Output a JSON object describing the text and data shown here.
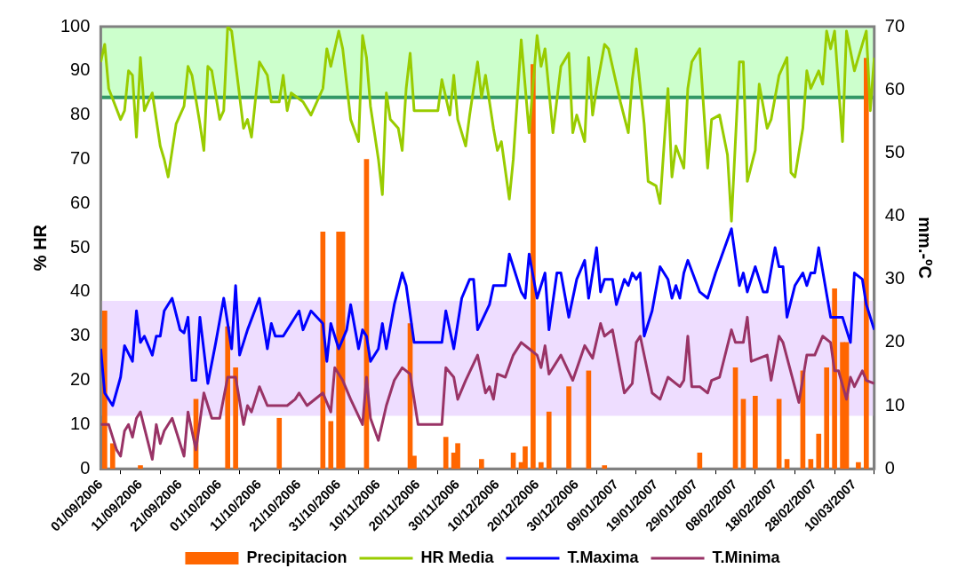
{
  "chart_data": {
    "type": "line",
    "ylabel": "% HR",
    "y2label": "mm.-ºC",
    "xlim": [
      "2006-09-01",
      "2007-03-15"
    ],
    "xticks": [
      {
        "value": "2006-09-01",
        "label": "01/09/2006"
      },
      {
        "value": "2006-09-11",
        "label": "11/09/2006"
      },
      {
        "value": "2006-09-21",
        "label": "21/09/2006"
      },
      {
        "value": "2006-10-01",
        "label": "01/10/2006"
      },
      {
        "value": "2006-10-11",
        "label": "11/10/2006"
      },
      {
        "value": "2006-10-21",
        "label": "21/10/2006"
      },
      {
        "value": "2006-10-31",
        "label": "31/10/2006"
      },
      {
        "value": "2006-11-10",
        "label": "10/11/2006"
      },
      {
        "value": "2006-11-20",
        "label": "20/11/2006"
      },
      {
        "value": "2006-11-30",
        "label": "30/11/2006"
      },
      {
        "value": "2006-12-10",
        "label": "10/12/2006"
      },
      {
        "value": "2006-12-20",
        "label": "20/12/2006"
      },
      {
        "value": "2006-12-30",
        "label": "30/12/2006"
      },
      {
        "value": "2007-01-09",
        "label": "09/01/2007"
      },
      {
        "value": "2007-01-19",
        "label": "19/01/2007"
      },
      {
        "value": "2007-01-29",
        "label": "29/01/2007"
      },
      {
        "value": "2007-02-08",
        "label": "08/02/2007"
      },
      {
        "value": "2007-02-18",
        "label": "18/02/2007"
      },
      {
        "value": "2007-02-28",
        "label": "28/02/2007"
      },
      {
        "value": "2007-03-10",
        "label": "10/03/2007"
      }
    ],
    "ylim": [
      0,
      100
    ],
    "yticks": [
      0,
      10,
      20,
      30,
      40,
      50,
      60,
      70,
      80,
      90,
      100
    ],
    "y2lim": [
      0,
      70
    ],
    "y2ticks": [
      0,
      10,
      20,
      30,
      40,
      50,
      60,
      70
    ],
    "legend": "bottom",
    "bands": [
      {
        "axis": "y",
        "from": 84,
        "to": 100,
        "color": "#ccffcc"
      },
      {
        "axis": "y",
        "from": 12,
        "to": 38,
        "color": "#eeddff"
      }
    ],
    "ref_lines": [
      {
        "axis": "y",
        "value": 84,
        "color": "#339966"
      }
    ],
    "series": [
      {
        "name": "Precipitacion",
        "type": "bar",
        "axis": "y2",
        "color": "#ff6600",
        "x": [
          "2006-09-02",
          "2006-09-04",
          "2006-09-11",
          "2006-09-25",
          "2006-10-03",
          "2006-10-05",
          "2006-10-16",
          "2006-10-27",
          "2006-10-29",
          "2006-10-31",
          "2006-11-01",
          "2006-11-07",
          "2006-11-18",
          "2006-11-19",
          "2006-11-27",
          "2006-11-29",
          "2006-11-30",
          "2006-12-06",
          "2006-12-14",
          "2006-12-16",
          "2006-12-17",
          "2006-12-19",
          "2006-12-21",
          "2006-12-23",
          "2006-12-28",
          "2007-01-02",
          "2007-01-06",
          "2007-01-30",
          "2007-02-08",
          "2007-02-10",
          "2007-02-13",
          "2007-02-19",
          "2007-02-21",
          "2007-02-25",
          "2007-02-27",
          "2007-03-01",
          "2007-03-03",
          "2007-03-05",
          "2007-03-07",
          "2007-03-08",
          "2007-03-11",
          "2007-03-13"
        ],
        "values": [
          25,
          4,
          0.5,
          11,
          22.5,
          16,
          8,
          37.5,
          7.5,
          37.5,
          37.5,
          49,
          23,
          2,
          5,
          2.5,
          4,
          1.5,
          2.5,
          1,
          3.5,
          64,
          1,
          9,
          13,
          15.5,
          0.5,
          2.5,
          16,
          11,
          11.5,
          11,
          1.5,
          15.5,
          1.5,
          5.5,
          16,
          28.5,
          20,
          20,
          1,
          65
        ]
      },
      {
        "name": "HR Media",
        "color": "#99cc00",
        "x": [
          "2006-09-01",
          "2006-09-02",
          "2006-09-03",
          "2006-09-06",
          "2006-09-07",
          "2006-09-08",
          "2006-09-09",
          "2006-09-10",
          "2006-09-11",
          "2006-09-12",
          "2006-09-14",
          "2006-09-16",
          "2006-09-17",
          "2006-09-18",
          "2006-09-20",
          "2006-09-22",
          "2006-09-23",
          "2006-09-24",
          "2006-09-26",
          "2006-09-27",
          "2006-09-28",
          "2006-09-29",
          "2006-10-01",
          "2006-10-02",
          "2006-10-03",
          "2006-10-04",
          "2006-10-07",
          "2006-10-08",
          "2006-10-09",
          "2006-10-11",
          "2006-10-13",
          "2006-10-14",
          "2006-10-16",
          "2006-10-17",
          "2006-10-18",
          "2006-10-19",
          "2006-10-22",
          "2006-10-24",
          "2006-10-27",
          "2006-10-28",
          "2006-10-29",
          "2006-10-31",
          "2006-11-01",
          "2006-11-03",
          "2006-11-05",
          "2006-11-06",
          "2006-11-07",
          "2006-11-08",
          "2006-11-09",
          "2006-11-10",
          "2006-11-11",
          "2006-11-12",
          "2006-11-13",
          "2006-11-15",
          "2006-11-16",
          "2006-11-17",
          "2006-11-18",
          "2006-11-19",
          "2006-11-20",
          "2006-11-25",
          "2006-11-26",
          "2006-11-28",
          "2006-11-29",
          "2006-11-30",
          "2006-12-02",
          "2006-12-03",
          "2006-12-05",
          "2006-12-06",
          "2006-12-07",
          "2006-12-09",
          "2006-12-10",
          "2006-12-11",
          "2006-12-13",
          "2006-12-14",
          "2006-12-16",
          "2006-12-18",
          "2006-12-20",
          "2006-12-21",
          "2006-12-22",
          "2006-12-24",
          "2006-12-26",
          "2006-12-28",
          "2006-12-29",
          "2006-12-30",
          "2007-01-01",
          "2007-01-02",
          "2007-01-03",
          "2007-01-04",
          "2007-01-06",
          "2007-01-07",
          "2007-01-10",
          "2007-01-12",
          "2007-01-13",
          "2007-01-14",
          "2007-01-16",
          "2007-01-17",
          "2007-01-19",
          "2007-01-20",
          "2007-01-22",
          "2007-01-23",
          "2007-01-24",
          "2007-01-26",
          "2007-01-27",
          "2007-01-28",
          "2007-01-30",
          "2007-02-01",
          "2007-02-02",
          "2007-02-04",
          "2007-02-06",
          "2007-02-07",
          "2007-02-09",
          "2007-02-10",
          "2007-02-11",
          "2007-02-13",
          "2007-02-14",
          "2007-02-16",
          "2007-02-17",
          "2007-02-19",
          "2007-02-21",
          "2007-02-22",
          "2007-02-23",
          "2007-02-25",
          "2007-02-26",
          "2007-02-27",
          "2007-03-01",
          "2007-03-02",
          "2007-03-03",
          "2007-03-04",
          "2007-03-05",
          "2007-03-07",
          "2007-03-08",
          "2007-03-10",
          "2007-03-12",
          "2007-03-13",
          "2007-03-14",
          "2007-03-15"
        ],
        "values": [
          92,
          96,
          86,
          79,
          81,
          90,
          89,
          75,
          93,
          81,
          85,
          73,
          70,
          66,
          78,
          82,
          91,
          89,
          78,
          72,
          91,
          90,
          79,
          81,
          100,
          99,
          77,
          79,
          75,
          92,
          89,
          83,
          83,
          89,
          81,
          85,
          83,
          80,
          86,
          95,
          91,
          99,
          95,
          79,
          74,
          98,
          93,
          82,
          76,
          70,
          62,
          85,
          79,
          77,
          72,
          86,
          94,
          81,
          81,
          81,
          88,
          80,
          89,
          79,
          73,
          80,
          92,
          84,
          89,
          77,
          72,
          74,
          61,
          70,
          97,
          76,
          98,
          91,
          95,
          76,
          91,
          94,
          76,
          80,
          74,
          93,
          80,
          86,
          96,
          95,
          83,
          76,
          88,
          95,
          78,
          65,
          64,
          60,
          86,
          66,
          73,
          68,
          86,
          92,
          95,
          68,
          79,
          80,
          71,
          56,
          92,
          92,
          65,
          72,
          87,
          77,
          79,
          89,
          93,
          67,
          66,
          77,
          90,
          86,
          90,
          87,
          99,
          95,
          99,
          74,
          99,
          90,
          96,
          99,
          81,
          93
        ]
      },
      {
        "name": "T.Maxima",
        "axis": "y2",
        "color": "#0000ff",
        "x": [
          "2006-09-01",
          "2006-09-02",
          "2006-09-04",
          "2006-09-06",
          "2006-09-07",
          "2006-09-09",
          "2006-09-10",
          "2006-09-11",
          "2006-09-12",
          "2006-09-14",
          "2006-09-15",
          "2006-09-16",
          "2006-09-17",
          "2006-09-19",
          "2006-09-21",
          "2006-09-22",
          "2006-09-23",
          "2006-09-24",
          "2006-09-25",
          "2006-09-26",
          "2006-09-28",
          "2006-09-30",
          "2006-10-02",
          "2006-10-04",
          "2006-10-05",
          "2006-10-06",
          "2006-10-08",
          "2006-10-11",
          "2006-10-13",
          "2006-10-14",
          "2006-10-15",
          "2006-10-17",
          "2006-10-19",
          "2006-10-21",
          "2006-10-22",
          "2006-10-24",
          "2006-10-27",
          "2006-10-28",
          "2006-10-29",
          "2006-10-31",
          "2006-11-02",
          "2006-11-03",
          "2006-11-05",
          "2006-11-06",
          "2006-11-07",
          "2006-11-08",
          "2006-11-10",
          "2006-11-11",
          "2006-11-12",
          "2006-11-14",
          "2006-11-16",
          "2006-11-17",
          "2006-11-19",
          "2006-11-20",
          "2006-11-26",
          "2006-11-27",
          "2006-11-29",
          "2006-12-01",
          "2006-12-03",
          "2006-12-04",
          "2006-12-05",
          "2006-12-08",
          "2006-12-09",
          "2006-12-12",
          "2006-12-13",
          "2006-12-16",
          "2006-12-17",
          "2006-12-18",
          "2006-12-20",
          "2006-12-22",
          "2006-12-23",
          "2006-12-25",
          "2006-12-26",
          "2006-12-28",
          "2006-12-30",
          "2007-01-01",
          "2007-01-02",
          "2007-01-04",
          "2007-01-05",
          "2007-01-06",
          "2007-01-08",
          "2007-01-09",
          "2007-01-11",
          "2007-01-12",
          "2007-01-13",
          "2007-01-14",
          "2007-01-15",
          "2007-01-16",
          "2007-01-18",
          "2007-01-20",
          "2007-01-22",
          "2007-01-23",
          "2007-01-24",
          "2007-01-25",
          "2007-01-26",
          "2007-01-27",
          "2007-01-30",
          "2007-02-01",
          "2007-02-03",
          "2007-02-07",
          "2007-02-09",
          "2007-02-10",
          "2007-02-11",
          "2007-02-13",
          "2007-02-15",
          "2007-02-16",
          "2007-02-18",
          "2007-02-19",
          "2007-02-20",
          "2007-02-21",
          "2007-02-23",
          "2007-02-25",
          "2007-02-26",
          "2007-02-27",
          "2007-02-28",
          "2007-03-01",
          "2007-03-04",
          "2007-03-07",
          "2007-03-09",
          "2007-03-10",
          "2007-03-12",
          "2007-03-13",
          "2007-03-15"
        ],
        "values": [
          19,
          12,
          10,
          14.5,
          19.5,
          17,
          25,
          20,
          21,
          18,
          21,
          21,
          25,
          27,
          22,
          21.5,
          24,
          14,
          14,
          24,
          13.5,
          20,
          27,
          19,
          29,
          18,
          22,
          27,
          19,
          23,
          21,
          21,
          23,
          25,
          22,
          25,
          23,
          17,
          23,
          19,
          22,
          26,
          19,
          22,
          21,
          17,
          19,
          23,
          19,
          26,
          31,
          29,
          20,
          20,
          20,
          25,
          19,
          27,
          30,
          30,
          22,
          26,
          29,
          29,
          34,
          28,
          27,
          34,
          27,
          31,
          22,
          31,
          31,
          24,
          30,
          33,
          27,
          35,
          28,
          30,
          30,
          26,
          30,
          29,
          31,
          30,
          31,
          21,
          25,
          32,
          30,
          27,
          29,
          27,
          31,
          33,
          28,
          27,
          31,
          38,
          29,
          31,
          28,
          32,
          28,
          28,
          35,
          32,
          32,
          24,
          29,
          31,
          29,
          31,
          31,
          35,
          24,
          24,
          20,
          31,
          30,
          26,
          22
        ]
      },
      {
        "name": "T.Minima",
        "axis": "y2",
        "color": "#993366",
        "x": [
          "2006-09-01",
          "2006-09-03",
          "2006-09-05",
          "2006-09-06",
          "2006-09-07",
          "2006-09-08",
          "2006-09-09",
          "2006-09-10",
          "2006-09-11",
          "2006-09-14",
          "2006-09-15",
          "2006-09-16",
          "2006-09-17",
          "2006-09-19",
          "2006-09-22",
          "2006-09-23",
          "2006-09-25",
          "2006-09-27",
          "2006-09-29",
          "2006-10-01",
          "2006-10-03",
          "2006-10-05",
          "2006-10-07",
          "2006-10-08",
          "2006-10-09",
          "2006-10-11",
          "2006-10-13",
          "2006-10-16",
          "2006-10-18",
          "2006-10-20",
          "2006-10-21",
          "2006-10-23",
          "2006-10-27",
          "2006-10-29",
          "2006-10-30",
          "2006-11-01",
          "2006-11-03",
          "2006-11-06",
          "2006-11-07",
          "2006-11-08",
          "2006-11-10",
          "2006-11-12",
          "2006-11-14",
          "2006-11-16",
          "2006-11-18",
          "2006-11-20",
          "2006-11-26",
          "2006-11-27",
          "2006-11-29",
          "2006-11-30",
          "2006-12-02",
          "2006-12-05",
          "2006-12-07",
          "2006-12-08",
          "2006-12-09",
          "2006-12-10",
          "2006-12-12",
          "2006-12-14",
          "2006-12-16",
          "2006-12-18",
          "2006-12-20",
          "2006-12-21",
          "2006-12-22",
          "2006-12-23",
          "2006-12-26",
          "2006-12-29",
          "2007-01-01",
          "2007-01-03",
          "2007-01-05",
          "2007-01-06",
          "2007-01-08",
          "2007-01-11",
          "2007-01-13",
          "2007-01-14",
          "2007-01-15",
          "2007-01-18",
          "2007-01-20",
          "2007-01-22",
          "2007-01-25",
          "2007-01-26",
          "2007-01-27",
          "2007-01-28",
          "2007-01-30",
          "2007-02-01",
          "2007-02-02",
          "2007-02-04",
          "2007-02-07",
          "2007-02-08",
          "2007-02-10",
          "2007-02-11",
          "2007-02-12",
          "2007-02-16",
          "2007-02-17",
          "2007-02-19",
          "2007-02-20",
          "2007-02-24",
          "2007-02-26",
          "2007-02-28",
          "2007-03-02",
          "2007-03-04",
          "2007-03-05",
          "2007-03-06",
          "2007-03-08",
          "2007-03-09",
          "2007-03-10",
          "2007-03-12",
          "2007-03-13",
          "2007-03-15"
        ],
        "values": [
          7,
          7,
          3,
          2,
          6,
          7,
          5,
          8,
          9,
          1.5,
          7,
          4,
          6,
          8,
          2,
          9,
          3,
          12,
          8,
          8,
          14.5,
          14.5,
          7,
          10,
          9,
          13,
          10,
          10,
          10,
          11,
          12,
          10,
          12,
          9,
          16,
          14,
          11,
          7,
          14.5,
          8,
          4.5,
          10,
          14,
          16,
          15,
          7,
          7,
          16,
          14.5,
          11,
          14,
          18,
          12,
          13,
          11,
          15,
          14.5,
          18,
          20,
          19,
          18,
          16,
          19.5,
          15,
          18,
          14,
          19.5,
          17.5,
          23,
          21,
          22,
          12,
          13.5,
          20,
          21,
          12,
          11,
          14.5,
          13,
          14,
          21,
          13,
          13,
          12,
          14,
          14.5,
          22,
          20,
          20,
          24,
          17,
          18,
          14,
          21,
          20,
          10.5,
          18,
          18,
          21,
          20,
          15.5,
          15.5,
          11,
          14.5,
          13,
          15.5,
          14,
          13.5
        ]
      }
    ]
  }
}
